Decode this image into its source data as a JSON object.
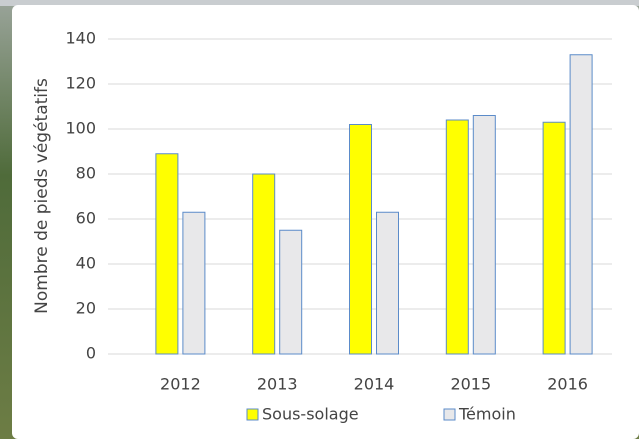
{
  "chart_data": {
    "type": "bar",
    "categories": [
      "2012",
      "2013",
      "2014",
      "2015",
      "2016"
    ],
    "series": [
      {
        "name": "Sous-solage",
        "color": "#ffff00",
        "values": [
          89,
          80,
          102,
          104,
          103
        ]
      },
      {
        "name": "Témoin",
        "color": "#e8e8ea",
        "values": [
          63,
          55,
          63,
          106,
          133
        ]
      }
    ],
    "y_label": "Nombre de pieds végétatifs",
    "ylim": [
      0,
      140
    ],
    "yticks": [
      0,
      20,
      40,
      60,
      80,
      100,
      120,
      140
    ],
    "grid": true,
    "legend": "bottom",
    "edge_color": "#5b8bc9"
  }
}
